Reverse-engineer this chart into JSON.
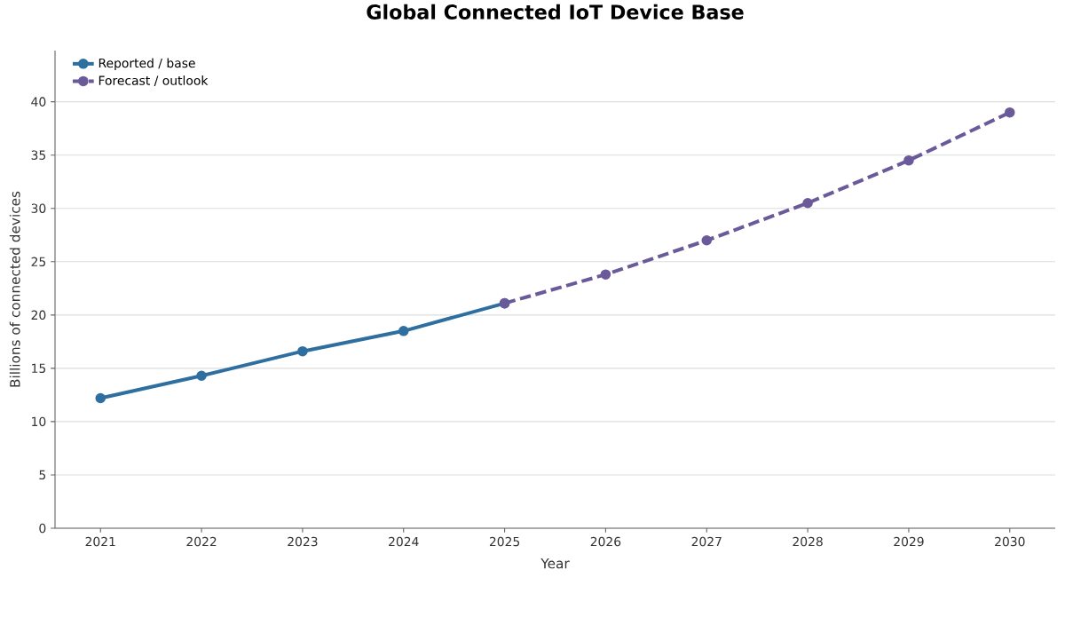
{
  "chart_data": {
    "type": "line",
    "title": "Global Connected IoT Device Base",
    "xlabel": "Year",
    "ylabel": "Billions of connected devices",
    "series": [
      {
        "name": "Reported / base",
        "color": "#2f6f9f",
        "line_style": "solid",
        "x": [
          2021,
          2022,
          2023,
          2024,
          2025
        ],
        "values": [
          12.2,
          14.3,
          16.6,
          18.5,
          21.1
        ]
      },
      {
        "name": "Forecast / outlook",
        "color": "#6a5a9a",
        "line_style": "dashed",
        "x": [
          2025,
          2026,
          2027,
          2028,
          2029,
          2030
        ],
        "values": [
          21.1,
          23.8,
          27.0,
          30.5,
          34.5,
          39.0
        ]
      }
    ],
    "xlim": [
      2020.55,
      2030.45
    ],
    "ylim": [
      0,
      44.8
    ],
    "xticks": [
      2021,
      2022,
      2023,
      2024,
      2025,
      2026,
      2027,
      2028,
      2029,
      2030
    ],
    "yticks": [
      0,
      5,
      10,
      15,
      20,
      25,
      30,
      35,
      40
    ],
    "grid": "y",
    "legend": "top left",
    "marker": "circle"
  }
}
